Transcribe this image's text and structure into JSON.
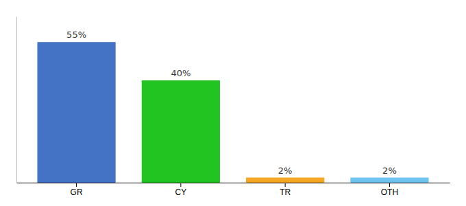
{
  "chart_data": {
    "type": "bar",
    "categories": [
      "GR",
      "CY",
      "TR",
      "OTH"
    ],
    "values": [
      55,
      40,
      2,
      2
    ],
    "value_labels": [
      "55%",
      "40%",
      "2%",
      "2%"
    ],
    "colors": [
      "#4472c4",
      "#21c421",
      "#f5a623",
      "#6ec6f0"
    ],
    "ylim": [
      0,
      65
    ],
    "data_labels": true,
    "tick_labels": "x",
    "grid": false
  }
}
